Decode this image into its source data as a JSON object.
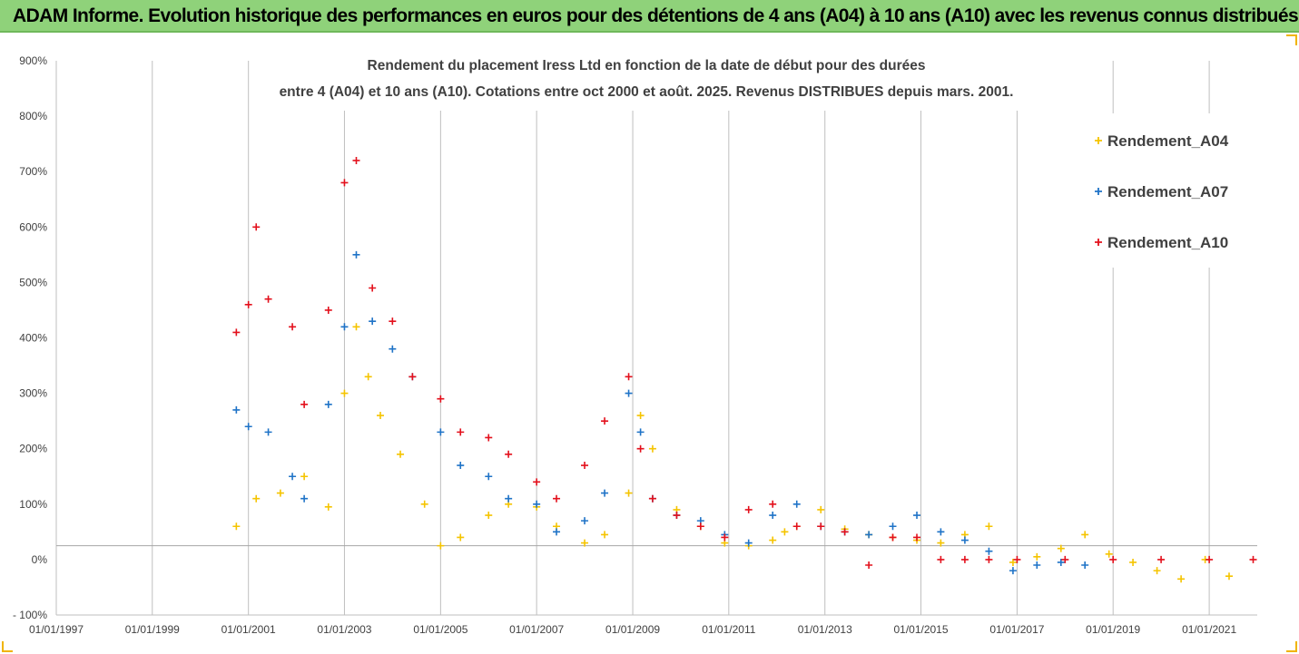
{
  "header": {
    "title": "ADAM Informe. Evolution historique des performances en euros pour des détentions de 4 ans (A04) à 10 ans (A10) avec les revenus connus distribués"
  },
  "colors": {
    "A04": "#f5c400",
    "A07": "#1f73c7",
    "A10": "#e3101c",
    "banner": "#8fd27a"
  },
  "chart_data": {
    "type": "scatter",
    "title_lines": [
      "Rendement du placement Iress Ltd en fonction de la date de début pour des durées",
      "entre 4 (A04) et 10 ans (A10). Cotations entre oct 2000 et août. 2025. Revenus DISTRIBUES depuis mars. 2001."
    ],
    "xlabel": "",
    "ylabel": "",
    "x_range": [
      "1997-01-01",
      "2022-01-01"
    ],
    "x_ticks": [
      "01/01/1997",
      "01/01/1999",
      "01/01/2001",
      "01/01/2003",
      "01/01/2005",
      "01/01/2007",
      "01/01/2009",
      "01/01/2011",
      "01/01/2013",
      "01/01/2015",
      "01/01/2017",
      "01/01/2019",
      "01/01/2021"
    ],
    "y_range": [
      -100,
      900
    ],
    "y_ticks": [
      "- 100%",
      "0%",
      "100%",
      "200%",
      "300%",
      "400%",
      "500%",
      "600%",
      "700%",
      "800%",
      "900%"
    ],
    "y_tick_values": [
      -100,
      0,
      100,
      200,
      300,
      400,
      500,
      600,
      700,
      800,
      900
    ],
    "reference_line_y": 25,
    "legend_position": "top-right",
    "series": [
      {
        "name": "Rendement_A04",
        "color": "#f5c400",
        "x": [
          "2000-10-01",
          "2001-03-01",
          "2001-09-01",
          "2002-03-01",
          "2002-09-01",
          "2003-01-01",
          "2003-04-01",
          "2003-07-01",
          "2003-10-01",
          "2004-03-01",
          "2004-09-01",
          "2005-01-01",
          "2005-06-01",
          "2006-01-01",
          "2006-06-01",
          "2007-01-01",
          "2007-06-01",
          "2008-01-01",
          "2008-06-01",
          "2008-12-01",
          "2009-03-01",
          "2009-06-01",
          "2009-12-01",
          "2010-06-01",
          "2010-12-01",
          "2011-06-01",
          "2011-12-01",
          "2012-03-01",
          "2012-06-01",
          "2012-12-01",
          "2013-06-01",
          "2013-12-01",
          "2014-06-01",
          "2014-12-01",
          "2015-06-01",
          "2015-12-01",
          "2016-06-01",
          "2016-12-01",
          "2017-06-01",
          "2017-12-01",
          "2018-06-01",
          "2018-12-01",
          "2019-06-01",
          "2019-12-01",
          "2020-06-01",
          "2020-12-01",
          "2021-06-01"
        ],
        "y": [
          60,
          110,
          120,
          150,
          95,
          300,
          420,
          330,
          260,
          190,
          100,
          25,
          40,
          80,
          100,
          95,
          60,
          30,
          45,
          120,
          260,
          200,
          90,
          60,
          30,
          25,
          35,
          50,
          60,
          90,
          55,
          45,
          40,
          35,
          30,
          45,
          60,
          -5,
          5,
          20,
          45,
          10,
          -5,
          -20,
          -35,
          0,
          -30
        ]
      },
      {
        "name": "Rendement_A07",
        "color": "#1f73c7",
        "x": [
          "2000-10-01",
          "2001-01-01",
          "2001-06-01",
          "2001-12-01",
          "2002-03-01",
          "2002-09-01",
          "2003-01-01",
          "2003-04-01",
          "2003-08-01",
          "2004-01-01",
          "2004-06-01",
          "2005-01-01",
          "2005-06-01",
          "2006-01-01",
          "2006-06-01",
          "2007-01-01",
          "2007-06-01",
          "2008-01-01",
          "2008-06-01",
          "2008-12-01",
          "2009-03-01",
          "2009-06-01",
          "2009-12-01",
          "2010-06-01",
          "2010-12-01",
          "2011-06-01",
          "2011-12-01",
          "2012-06-01",
          "2012-12-01",
          "2013-06-01",
          "2013-12-01",
          "2014-06-01",
          "2014-12-01",
          "2015-06-01",
          "2015-12-01",
          "2016-06-01",
          "2016-12-01",
          "2017-06-01",
          "2017-12-01",
          "2018-06-01"
        ],
        "y": [
          270,
          240,
          230,
          150,
          110,
          280,
          420,
          550,
          430,
          380,
          330,
          230,
          170,
          150,
          110,
          100,
          50,
          70,
          120,
          300,
          230,
          110,
          80,
          70,
          45,
          30,
          80,
          100,
          60,
          50,
          45,
          60,
          80,
          50,
          35,
          15,
          -20,
          -10,
          -5,
          -10
        ]
      },
      {
        "name": "Rendement_A10",
        "color": "#e3101c",
        "x": [
          "2000-10-01",
          "2001-01-01",
          "2001-03-01",
          "2001-06-01",
          "2001-12-01",
          "2002-03-01",
          "2002-09-01",
          "2003-01-01",
          "2003-04-01",
          "2003-08-01",
          "2004-01-01",
          "2004-06-01",
          "2005-01-01",
          "2005-06-01",
          "2006-01-01",
          "2006-06-01",
          "2007-01-01",
          "2007-06-01",
          "2008-01-01",
          "2008-06-01",
          "2008-12-01",
          "2009-03-01",
          "2009-06-01",
          "2009-12-01",
          "2010-06-01",
          "2010-12-01",
          "2011-06-01",
          "2011-12-01",
          "2012-06-01",
          "2012-12-01",
          "2013-06-01",
          "2013-12-01",
          "2014-06-01",
          "2014-12-01",
          "2015-06-01",
          "2015-12-01",
          "2016-06-01",
          "2017-01-01",
          "2018-01-01",
          "2019-01-01",
          "2020-01-01",
          "2021-01-01",
          "2021-12-01"
        ],
        "y": [
          410,
          460,
          600,
          470,
          420,
          280,
          450,
          680,
          720,
          490,
          430,
          330,
          290,
          230,
          220,
          190,
          140,
          110,
          170,
          250,
          330,
          200,
          110,
          80,
          60,
          40,
          90,
          100,
          60,
          60,
          50,
          -10,
          40,
          40,
          0,
          0,
          0,
          0,
          0,
          0,
          0,
          0,
          0
        ]
      }
    ]
  }
}
